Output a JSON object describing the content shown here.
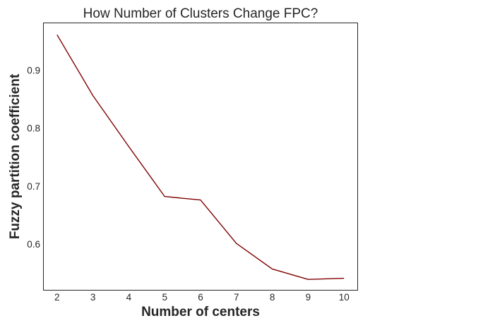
{
  "chart_data": {
    "type": "line",
    "title": "How Number of Clusters Change FPC?",
    "xlabel": "Number of centers",
    "ylabel": "Fuzzy partition coefficient",
    "x": [
      2,
      3,
      4,
      5,
      6,
      7,
      8,
      9,
      10
    ],
    "xticks": [
      "2",
      "3",
      "4",
      "5",
      "6",
      "7",
      "8",
      "9",
      "10"
    ],
    "yticks": [
      "0.6",
      "0.7",
      "0.8",
      "0.9"
    ],
    "ytick_values": [
      0.6,
      0.7,
      0.8,
      0.9
    ],
    "xlim": [
      1.63,
      10.37
    ],
    "ylim": [
      0.521,
      0.982
    ],
    "grid": false,
    "legend": "none",
    "series": [
      {
        "values": [
          0.961,
          0.856,
          0.768,
          0.682,
          0.676,
          0.601,
          0.557,
          0.539,
          0.541
        ],
        "color": "#800000"
      }
    ]
  }
}
